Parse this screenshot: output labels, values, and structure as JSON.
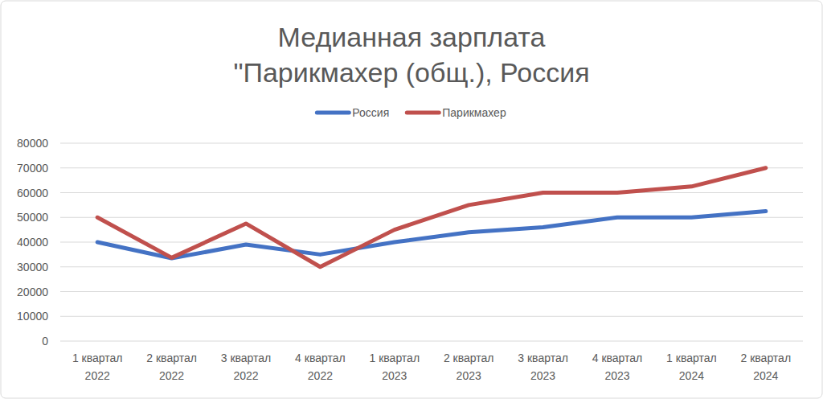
{
  "chart_data": {
    "type": "line",
    "title": [
      "Медианная зарплата",
      "\"Парикмахер (общ.), Россия"
    ],
    "categories": [
      "1 квартал 2022",
      "2 квартал 2022",
      "3 квартал 2022",
      "4 квартал 2022",
      "1 квартал 2023",
      "2 квартал 2023",
      "3 квартал 2023",
      "4 квартал 2023",
      "1 квартал 2024",
      "2 квартал 2024"
    ],
    "series": [
      {
        "name": "Россия",
        "color": "#4472c4",
        "values": [
          40000,
          33500,
          39000,
          35000,
          40000,
          44000,
          46000,
          50000,
          50000,
          52500
        ]
      },
      {
        "name": "Парикмахер",
        "color": "#c0504d",
        "values": [
          50000,
          33700,
          47500,
          30000,
          45000,
          55000,
          60000,
          60000,
          62500,
          70000
        ]
      }
    ],
    "ylim": [
      0,
      80000
    ],
    "yticks": [
      0,
      10000,
      20000,
      30000,
      40000,
      50000,
      60000,
      70000,
      80000
    ],
    "grid": true,
    "legend": "top"
  }
}
